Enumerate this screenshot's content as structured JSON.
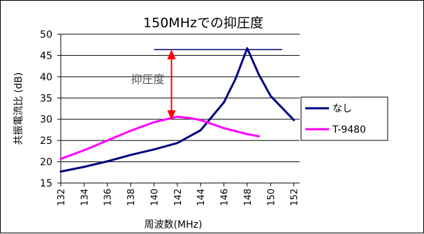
{
  "chart_data": {
    "type": "line",
    "title": "150MHzでの抑圧度",
    "xlabel": "周波数(MHz)",
    "ylabel": "共振電流比 (dB)",
    "x_ticks": [
      132,
      134,
      136,
      138,
      140,
      142,
      144,
      146,
      148,
      150,
      152
    ],
    "xlim": [
      132,
      152.5
    ],
    "ylim": [
      15,
      50
    ],
    "y_ticks": [
      15,
      20,
      25,
      30,
      35,
      40,
      45,
      50
    ],
    "grid": true,
    "legend_position": "right",
    "series": [
      {
        "name": "なし",
        "color": "#000080",
        "x": [
          132,
          134,
          136,
          138,
          140,
          142,
          144,
          146,
          147,
          148,
          149,
          150,
          152
        ],
        "y": [
          17.7,
          18.8,
          20.1,
          21.6,
          22.9,
          24.4,
          27.4,
          34,
          39.5,
          46.7,
          40.5,
          35.5,
          29.8
        ]
      },
      {
        "name": "T-9480",
        "color": "#ff00ff",
        "x": [
          132,
          134,
          136,
          138,
          140,
          142,
          143,
          144,
          146,
          148,
          149
        ],
        "y": [
          20.7,
          22.7,
          25,
          27.3,
          29.3,
          30.6,
          30.3,
          29.8,
          27.9,
          26.5,
          26
        ]
      }
    ],
    "annotation": {
      "label": "抑圧度",
      "reference_level": 46.4,
      "reference_x": [
        140,
        151
      ],
      "arrow_x": 141.5,
      "arrow_top": 46.4,
      "arrow_bottom": 29.8,
      "reference_color": "#000080",
      "arrow_color": "#ff0000"
    }
  }
}
